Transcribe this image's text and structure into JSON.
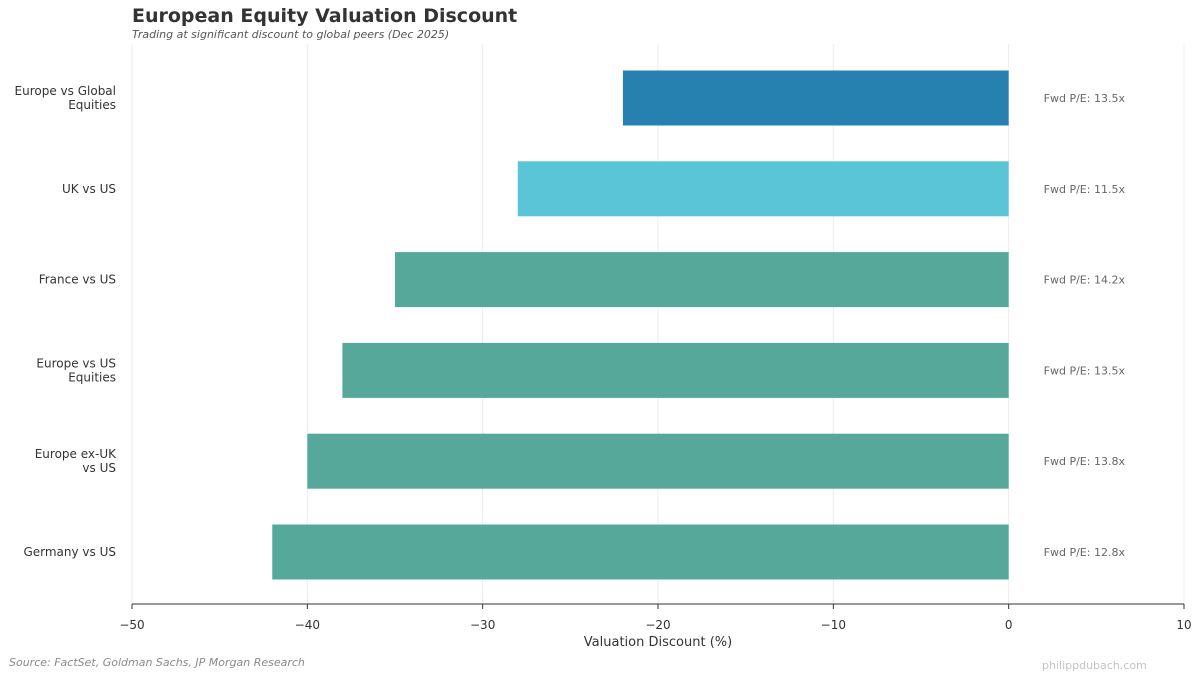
{
  "header": {
    "title": "European Equity Valuation Discount",
    "subtitle": "Trading at significant discount to global peers (Dec 2025)"
  },
  "footer": {
    "source": "Source: FactSet, Goldman Sachs, JP Morgan Research",
    "watermark": "philippdubach.com"
  },
  "chart_data": {
    "type": "bar",
    "orientation": "horizontal",
    "categories": [
      [
        "Europe vs Global",
        "Equities"
      ],
      [
        "UK vs US"
      ],
      [
        "France vs US"
      ],
      [
        "Europe vs US",
        "Equities"
      ],
      [
        "Europe ex-UK",
        "vs US"
      ],
      [
        "Germany vs US"
      ]
    ],
    "values": [
      -22,
      -28,
      -35,
      -38,
      -40,
      -42
    ],
    "colors": [
      "#2680b0",
      "#5bc5d8",
      "#55a89a",
      "#55a89a",
      "#55a89a",
      "#55a89a"
    ],
    "annotations": [
      "Fwd P/E: 13.5x",
      "Fwd P/E: 11.5x",
      "Fwd P/E: 14.2x",
      "Fwd P/E: 13.5x",
      "Fwd P/E: 13.8x",
      "Fwd P/E: 12.8x"
    ],
    "xlabel": "Valuation Discount (%)",
    "ylabel": "",
    "xlim": [
      -50,
      10
    ],
    "xticks": [
      -50,
      -40,
      -30,
      -20,
      -10,
      0,
      10
    ],
    "xtick_labels": [
      "−50",
      "−40",
      "−30",
      "−20",
      "−10",
      "0",
      "10"
    ],
    "grid": true
  }
}
